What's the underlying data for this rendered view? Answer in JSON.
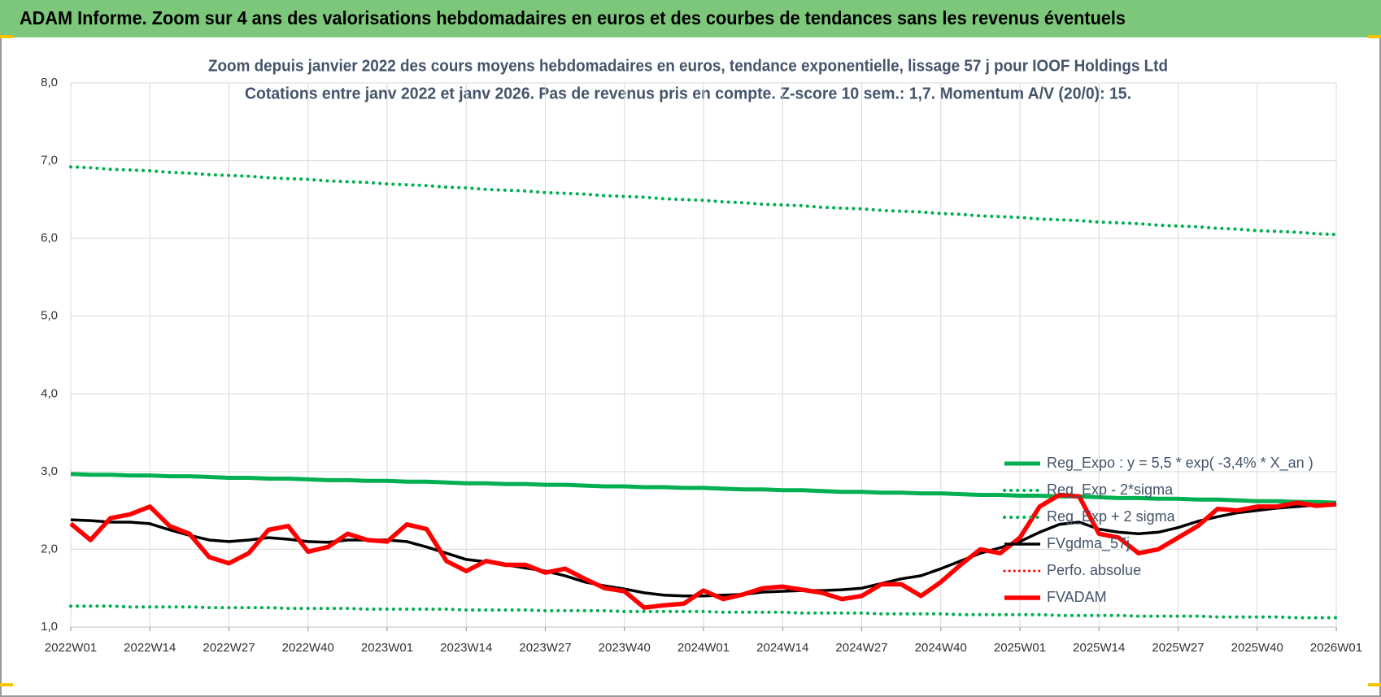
{
  "chart_data": {
    "type": "line",
    "title": "ADAM Informe. Zoom sur 4 ans des valorisations hebdomadaires en euros et des courbes de tendances sans les revenus éventuels",
    "subtitle": [
      "Zoom depuis janvier 2022 des cours moyens hebdomadaires en euros, tendance exponentielle, lissage 57 j pour IOOF Holdings Ltd",
      "Cotations entre janv 2022 et janv 2026. Pas de revenus pris en compte. Z-score 10 sem.: 1,7. Momentum A/V (20/0):  15."
    ],
    "categories": [
      "2022W01",
      null,
      null,
      null,
      "2022W14",
      null,
      null,
      null,
      "2022W27",
      null,
      null,
      null,
      "2022W40",
      null,
      null,
      null,
      "2023W01",
      null,
      null,
      null,
      "2023W14",
      null,
      null,
      null,
      "2023W27",
      null,
      null,
      null,
      "2023W40",
      null,
      null,
      null,
      "2024W01",
      null,
      null,
      null,
      "2024W14",
      null,
      null,
      null,
      "2024W27",
      null,
      null,
      null,
      "2024W40",
      null,
      null,
      null,
      "2025W01",
      null,
      null,
      null,
      "2025W14",
      null,
      null,
      null,
      "2025W27",
      null,
      null,
      null,
      "2025W40",
      null,
      null,
      null,
      "2026W01"
    ],
    "ylim": [
      1,
      8
    ],
    "yticks": [
      {
        "value": 1,
        "label": "1,0"
      },
      {
        "value": 2,
        "label": "2,0"
      },
      {
        "value": 3,
        "label": "3,0"
      },
      {
        "value": 4,
        "label": "4,0"
      },
      {
        "value": 5,
        "label": "5,0"
      },
      {
        "value": 6,
        "label": "6,0"
      },
      {
        "value": 7,
        "label": "7,0"
      },
      {
        "value": 8,
        "label": "8,0"
      }
    ],
    "grid": true,
    "series": [
      {
        "name": "Reg_Expo : y = 5,5 * exp( -3,4% *  X_an )",
        "color": "#00b050",
        "style": "solid",
        "width": 5,
        "values": [
          2.97,
          2.96,
          2.96,
          2.95,
          2.95,
          2.94,
          2.94,
          2.93,
          2.92,
          2.92,
          2.91,
          2.91,
          2.9,
          2.89,
          2.89,
          2.88,
          2.88,
          2.87,
          2.87,
          2.86,
          2.85,
          2.85,
          2.84,
          2.84,
          2.83,
          2.83,
          2.82,
          2.81,
          2.81,
          2.8,
          2.8,
          2.79,
          2.79,
          2.78,
          2.77,
          2.77,
          2.76,
          2.76,
          2.75,
          2.74,
          2.74,
          2.73,
          2.73,
          2.72,
          2.72,
          2.71,
          2.7,
          2.7,
          2.69,
          2.69,
          2.68,
          2.68,
          2.67,
          2.66,
          2.66,
          2.65,
          2.65,
          2.64,
          2.64,
          2.63,
          2.62,
          2.62,
          2.61,
          2.61,
          2.6
        ]
      },
      {
        "name": "Reg_Exp - 2*sigma",
        "color": "#00b050",
        "style": "dotted",
        "width": 4,
        "values": [
          1.27,
          1.27,
          1.27,
          1.26,
          1.26,
          1.26,
          1.26,
          1.25,
          1.25,
          1.25,
          1.25,
          1.24,
          1.24,
          1.24,
          1.24,
          1.23,
          1.23,
          1.23,
          1.23,
          1.23,
          1.22,
          1.22,
          1.22,
          1.22,
          1.21,
          1.21,
          1.21,
          1.21,
          1.2,
          1.2,
          1.2,
          1.2,
          1.2,
          1.19,
          1.19,
          1.19,
          1.19,
          1.18,
          1.18,
          1.18,
          1.18,
          1.17,
          1.17,
          1.17,
          1.17,
          1.16,
          1.16,
          1.16,
          1.16,
          1.16,
          1.15,
          1.15,
          1.15,
          1.15,
          1.14,
          1.14,
          1.14,
          1.14,
          1.13,
          1.13,
          1.13,
          1.13,
          1.12,
          1.12,
          1.12
        ]
      },
      {
        "name": "Reg_Exp + 2 sigma",
        "color": "#00b050",
        "style": "dotted",
        "width": 4,
        "values": [
          6.92,
          6.91,
          6.89,
          6.88,
          6.87,
          6.85,
          6.84,
          6.82,
          6.81,
          6.8,
          6.78,
          6.77,
          6.76,
          6.74,
          6.73,
          6.72,
          6.7,
          6.69,
          6.68,
          6.66,
          6.65,
          6.63,
          6.62,
          6.61,
          6.59,
          6.58,
          6.57,
          6.55,
          6.54,
          6.53,
          6.51,
          6.5,
          6.49,
          6.47,
          6.46,
          6.44,
          6.43,
          6.42,
          6.4,
          6.39,
          6.38,
          6.36,
          6.35,
          6.34,
          6.32,
          6.31,
          6.29,
          6.28,
          6.27,
          6.25,
          6.24,
          6.23,
          6.21,
          6.2,
          6.19,
          6.17,
          6.16,
          6.15,
          6.13,
          6.12,
          6.1,
          6.09,
          6.08,
          6.06,
          6.05
        ]
      },
      {
        "name": "FVgdma_57j",
        "color": "#000000",
        "style": "solid",
        "width": 3.5,
        "values": [
          2.38,
          2.37,
          2.35,
          2.35,
          2.33,
          2.25,
          2.18,
          2.12,
          2.1,
          2.12,
          2.15,
          2.13,
          2.1,
          2.09,
          2.12,
          2.12,
          2.12,
          2.1,
          2.03,
          1.95,
          1.87,
          1.84,
          1.8,
          1.76,
          1.72,
          1.66,
          1.58,
          1.53,
          1.49,
          1.44,
          1.41,
          1.4,
          1.4,
          1.41,
          1.42,
          1.45,
          1.46,
          1.47,
          1.47,
          1.48,
          1.5,
          1.56,
          1.62,
          1.66,
          1.75,
          1.85,
          1.95,
          2.02,
          2.1,
          2.22,
          2.32,
          2.35,
          2.26,
          2.22,
          2.2,
          2.22,
          2.28,
          2.36,
          2.42,
          2.47,
          2.5,
          2.53,
          2.55,
          2.57,
          2.58
        ]
      },
      {
        "name": "Perfo. absolue",
        "color": "#ff0000",
        "style": "dotted",
        "width": 3,
        "values": [
          null,
          null,
          null,
          null,
          null,
          null,
          null,
          null,
          null,
          null,
          null,
          null,
          null,
          null,
          null,
          null,
          null,
          null,
          null,
          null,
          null,
          null,
          null,
          null,
          null,
          null,
          null,
          null,
          null,
          null,
          null,
          null,
          null,
          null,
          null,
          null,
          null,
          null,
          null,
          null,
          null,
          null,
          null,
          null,
          null,
          null,
          null,
          null,
          null,
          null,
          null,
          null,
          null,
          null,
          null,
          null,
          null,
          null,
          null,
          null,
          null,
          null,
          null,
          null,
          null
        ]
      },
      {
        "name": "FVADAM",
        "color": "#ff0000",
        "style": "solid",
        "width": 5.5,
        "values": [
          2.33,
          2.12,
          2.4,
          2.45,
          2.55,
          2.3,
          2.2,
          1.9,
          1.82,
          1.95,
          2.25,
          2.3,
          1.97,
          2.03,
          2.2,
          2.12,
          2.1,
          2.32,
          2.26,
          1.85,
          1.72,
          1.85,
          1.8,
          1.8,
          1.7,
          1.75,
          1.62,
          1.5,
          1.46,
          1.25,
          1.28,
          1.3,
          1.47,
          1.36,
          1.42,
          1.5,
          1.52,
          1.48,
          1.44,
          1.36,
          1.4,
          1.55,
          1.55,
          1.4,
          1.58,
          1.8,
          2.0,
          1.95,
          2.15,
          2.55,
          2.7,
          2.68,
          2.2,
          2.15,
          1.95,
          2.0,
          2.15,
          2.3,
          2.52,
          2.5,
          2.55,
          2.55,
          2.6,
          2.56,
          2.58
        ]
      }
    ]
  }
}
